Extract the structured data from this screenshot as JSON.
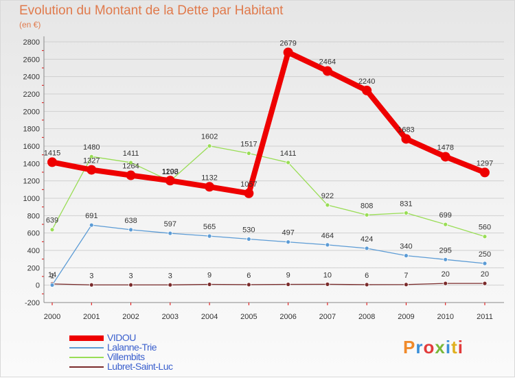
{
  "title": "Evolution du Montant de la Dette par Habitant",
  "subtitle": "(en €)",
  "logo": "Proxiti",
  "colors": {
    "title": "#e07a4c",
    "legend_text": "#3a5fcd",
    "grid": "#cfcfcf",
    "tick_red": "#e00000"
  },
  "chart_data": {
    "type": "line",
    "title": "Evolution du Montant de la Dette par Habitant",
    "subtitle": "(en €)",
    "xlabel": "",
    "ylabel": "",
    "ylim": [
      -200,
      2800
    ],
    "yticks": [
      -200,
      0,
      200,
      400,
      600,
      800,
      1000,
      1200,
      1400,
      1600,
      1800,
      2000,
      2200,
      2400,
      2600,
      2800
    ],
    "grid": true,
    "legend_position": "bottom-left",
    "categories": [
      "2000",
      "2001",
      "2002",
      "2003",
      "2004",
      "2005",
      "2006",
      "2007",
      "2008",
      "2009",
      "2010",
      "2011"
    ],
    "series": [
      {
        "name": "VIDOU",
        "color": "#ee0000",
        "values": [
          1415,
          1327,
          1264,
          1203,
          1132,
          1057,
          2679,
          2464,
          2240,
          1683,
          1478,
          1297
        ]
      },
      {
        "name": "Lalanne-Trie",
        "color": "#5b9bd5",
        "values": [
          1,
          691,
          638,
          597,
          565,
          530,
          497,
          464,
          424,
          340,
          295,
          250
        ]
      },
      {
        "name": "Villembits",
        "color": "#99dd55",
        "values": [
          639,
          1480,
          1411,
          1198,
          1602,
          1517,
          1411,
          922,
          808,
          831,
          699,
          560
        ]
      },
      {
        "name": "Lubret-Saint-Luc",
        "color": "#7a2a2a",
        "values": [
          14,
          3,
          3,
          3,
          9,
          6,
          9,
          10,
          6,
          7,
          20,
          20
        ]
      }
    ]
  }
}
